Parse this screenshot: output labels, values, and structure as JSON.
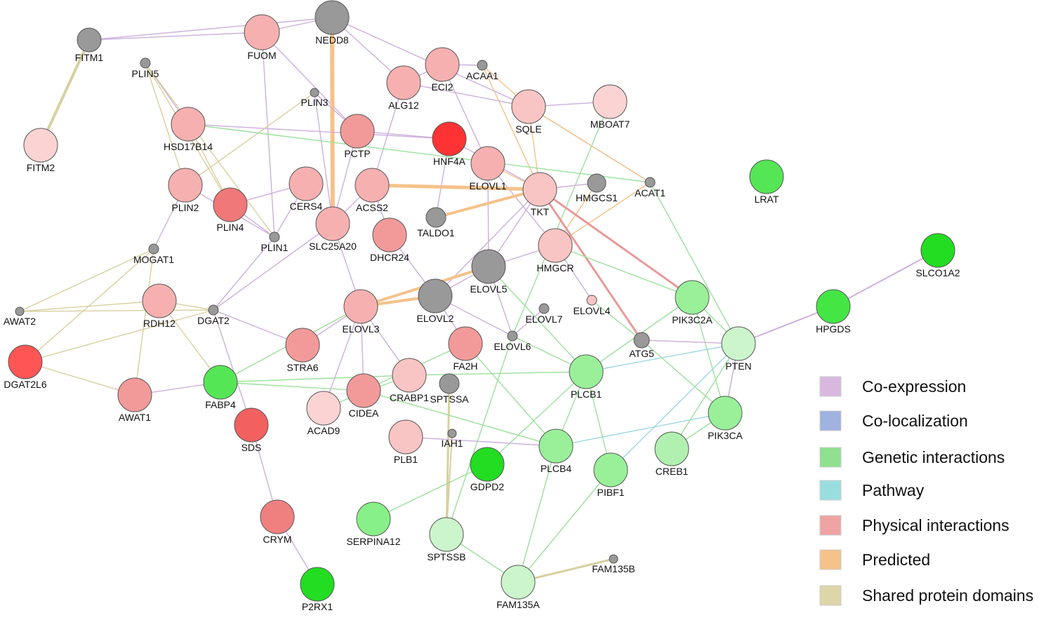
{
  "nodes": [
    {
      "label": "FITM1"
    },
    {
      "label": "PLIN5"
    },
    {
      "label": "FUOM"
    },
    {
      "label": "NEDD8"
    },
    {
      "label": "ACAA1"
    },
    {
      "label": "ECI2"
    },
    {
      "label": "ALG12"
    },
    {
      "label": "PLIN3"
    },
    {
      "label": "SQLE"
    },
    {
      "label": "MBOAT7"
    },
    {
      "label": "FITM2"
    },
    {
      "label": "HSD17B14"
    },
    {
      "label": "PCTP"
    },
    {
      "label": "HNF4A"
    },
    {
      "label": "ELOVL1"
    },
    {
      "label": "LRAT"
    },
    {
      "label": "ACAT1"
    },
    {
      "label": "HMGCS1"
    },
    {
      "label": "TKT"
    },
    {
      "label": "ACSS2"
    },
    {
      "label": "CERS4"
    },
    {
      "label": "PLIN2"
    },
    {
      "label": "PLIN4"
    },
    {
      "label": "TALDO1"
    },
    {
      "label": "SLC25A20"
    },
    {
      "label": "DHCR24"
    },
    {
      "label": "PLIN1"
    },
    {
      "label": "HMGCR"
    },
    {
      "label": "SLCO1A2"
    },
    {
      "label": "MOGAT1"
    },
    {
      "label": "ELOVL5"
    },
    {
      "label": "ELOVL2"
    },
    {
      "label": "RDH12"
    },
    {
      "label": "ELOVL3"
    },
    {
      "label": "ELOVL7"
    },
    {
      "label": "ELOVL4"
    },
    {
      "label": "PIK3C2A"
    },
    {
      "label": "HPGDS"
    },
    {
      "label": "AWAT2"
    },
    {
      "label": "DGAT2"
    },
    {
      "label": "ELOVL6"
    },
    {
      "label": "ATG5"
    },
    {
      "label": "PTEN"
    },
    {
      "label": "DGAT2L6"
    },
    {
      "label": "STRA6"
    },
    {
      "label": "FA2H"
    },
    {
      "label": "CRABP1"
    },
    {
      "label": "SPTSSA"
    },
    {
      "label": "FABP4"
    },
    {
      "label": "PLCB1"
    },
    {
      "label": "AWAT1"
    },
    {
      "label": "CIDEA"
    },
    {
      "label": "ACAD9"
    },
    {
      "label": "PIK3CA"
    },
    {
      "label": "SDS"
    },
    {
      "label": "PLB1"
    },
    {
      "label": "IAH1"
    },
    {
      "label": "PLCB4"
    },
    {
      "label": "CREB1"
    },
    {
      "label": "GDPD2"
    },
    {
      "label": "PIBF1"
    },
    {
      "label": "CRYM"
    },
    {
      "label": "SERPINA12"
    },
    {
      "label": "SPTSSB"
    },
    {
      "label": "FAM135B"
    },
    {
      "label": "FAM135A"
    },
    {
      "label": "P2RX1"
    }
  ],
  "legend": [
    {
      "label": "Co-expression"
    },
    {
      "label": "Co-localization"
    },
    {
      "label": "Genetic interactions"
    },
    {
      "label": "Pathway"
    },
    {
      "label": "Physical interactions"
    },
    {
      "label": "Predicted"
    },
    {
      "label": "Shared protein domains"
    }
  ]
}
